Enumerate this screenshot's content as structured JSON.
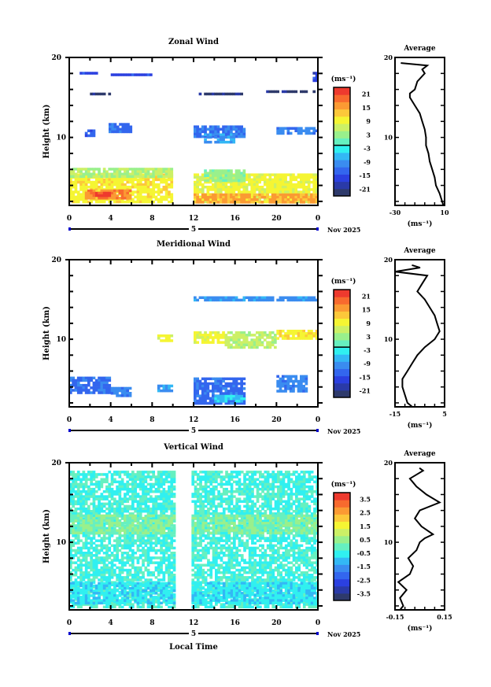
{
  "chart_data": [
    {
      "type": "heatmap",
      "title": "Zonal Wind",
      "ylabel": "Height (km)",
      "xlabel": "",
      "x_ticks": [
        "0",
        "4",
        "8",
        "12",
        "16",
        "20",
        "0"
      ],
      "xlim": [
        0,
        24
      ],
      "y_ticks": [
        "20",
        "10"
      ],
      "ylim": [
        1.5,
        20
      ],
      "date_label": "5",
      "month_label": "Nov 2025",
      "colorbar": {
        "unit": "(ms⁻¹)",
        "labels": [
          "21",
          "15",
          "9",
          "3",
          "-3",
          "-9",
          "-15",
          "-21"
        ],
        "range": [
          -24,
          24
        ]
      },
      "patches": [
        {
          "x0": 0,
          "x1": 10,
          "y0": 1.8,
          "y1": 5.5,
          "v": 10
        },
        {
          "x0": 1.5,
          "x1": 6,
          "y0": 2.3,
          "y1": 3.5,
          "v": 17
        },
        {
          "x0": 2.5,
          "x1": 3.8,
          "y0": 2.6,
          "y1": 3.2,
          "v": 22
        },
        {
          "x0": 0,
          "x1": 10,
          "y0": 5.2,
          "y1": 6.2,
          "v": 5
        },
        {
          "x0": 12,
          "x1": 24,
          "y0": 1.8,
          "y1": 5.5,
          "v": 9
        },
        {
          "x0": 12,
          "x1": 24,
          "y0": 2.0,
          "y1": 3.0,
          "v": 15
        },
        {
          "x0": 13,
          "x1": 17,
          "y0": 4.5,
          "y1": 6.0,
          "v": 3
        },
        {
          "x0": 12,
          "x1": 17,
          "y0": 10.0,
          "y1": 11.5,
          "v": -12
        },
        {
          "x0": 13,
          "x1": 16,
          "y0": 9.5,
          "y1": 10.5,
          "v": -8
        },
        {
          "x0": 1.5,
          "x1": 2.5,
          "y0": 10.3,
          "y1": 11.0,
          "v": -13
        },
        {
          "x0": 3.8,
          "x1": 6,
          "y0": 10.8,
          "y1": 11.8,
          "v": -12
        },
        {
          "x0": 20,
          "x1": 24,
          "y0": 10.5,
          "y1": 11.3,
          "v": -10
        },
        {
          "x0": 1,
          "x1": 3,
          "y0": 17.9,
          "y1": 18.2,
          "v": -16
        },
        {
          "x0": 4,
          "x1": 8,
          "y0": 17.8,
          "y1": 18.0,
          "v": -16
        },
        {
          "x0": 2,
          "x1": 4,
          "y0": 15.3,
          "y1": 15.6,
          "v": -22
        },
        {
          "x0": 12.5,
          "x1": 17,
          "y0": 15.3,
          "y1": 15.6,
          "v": -22
        },
        {
          "x0": 19,
          "x1": 24,
          "y0": 15.6,
          "y1": 15.9,
          "v": -22
        },
        {
          "x0": 23.5,
          "x1": 24,
          "y0": 17.0,
          "y1": 18.2,
          "v": -16
        }
      ],
      "profile": {
        "title": "Average",
        "xlabel": "(ms⁻¹)",
        "x_ticks": [
          "-30",
          "10"
        ],
        "xlim": [
          -30,
          10
        ],
        "y_ticks": [
          "20",
          "10"
        ],
        "height": [
          1.5,
          2,
          3,
          4,
          5,
          6,
          7,
          8,
          9,
          10,
          11,
          12,
          13,
          14,
          15,
          15.5,
          16,
          17,
          18,
          18.5,
          19,
          19.3
        ],
        "values": [
          9,
          8,
          6,
          3,
          2,
          0,
          -2,
          -3,
          -5,
          -5,
          -6,
          -8,
          -10,
          -14,
          -18,
          -18,
          -14,
          -12,
          -6,
          -8,
          -4,
          -25
        ]
      }
    },
    {
      "type": "heatmap",
      "title": "Meridional Wind",
      "ylabel": "Height (km)",
      "xlabel": "",
      "x_ticks": [
        "0",
        "4",
        "8",
        "12",
        "16",
        "20",
        "0"
      ],
      "xlim": [
        0,
        24
      ],
      "y_ticks": [
        "20",
        "10"
      ],
      "ylim": [
        1.5,
        20
      ],
      "date_label": "5",
      "month_label": "Nov 2025",
      "colorbar": {
        "unit": "(ms⁻¹)",
        "labels": [
          "21",
          "15",
          "9",
          "3",
          "-3",
          "-9",
          "-15",
          "-21"
        ],
        "range": [
          -24,
          24
        ]
      },
      "patches": [
        {
          "x0": 0,
          "x1": 4,
          "y0": 3.3,
          "y1": 5.3,
          "v": -12
        },
        {
          "x0": 4,
          "x1": 6,
          "y0": 3.0,
          "y1": 4.0,
          "v": -10
        },
        {
          "x0": 8.5,
          "x1": 10,
          "y0": 3.5,
          "y1": 4.3,
          "v": -9
        },
        {
          "x0": 12,
          "x1": 17,
          "y0": 2.0,
          "y1": 5.2,
          "v": -12
        },
        {
          "x0": 14,
          "x1": 17,
          "y0": 2.2,
          "y1": 3.0,
          "v": -5
        },
        {
          "x0": 20,
          "x1": 23,
          "y0": 3.5,
          "y1": 5.5,
          "v": -10
        },
        {
          "x0": 12,
          "x1": 15,
          "y0": 9.5,
          "y1": 11.0,
          "v": 9
        },
        {
          "x0": 15,
          "x1": 20,
          "y0": 9.0,
          "y1": 11.0,
          "v": 6
        },
        {
          "x0": 20,
          "x1": 24,
          "y0": 10.0,
          "y1": 11.2,
          "v": 10
        },
        {
          "x0": 8.5,
          "x1": 10,
          "y0": 9.8,
          "y1": 10.6,
          "v": 9
        },
        {
          "x0": 12,
          "x1": 24,
          "y0": 15.0,
          "y1": 15.4,
          "v": -9
        }
      ],
      "profile": {
        "title": "Average",
        "xlabel": "(ms⁻¹)",
        "x_ticks": [
          "-15",
          "5"
        ],
        "xlim": [
          -15,
          5
        ],
        "y_ticks": [
          "20",
          "10"
        ],
        "height": [
          1.5,
          2,
          3,
          4,
          5,
          6,
          7,
          8,
          9,
          10,
          11,
          12,
          13,
          14,
          15,
          16,
          17,
          18,
          18.5,
          19,
          19.3
        ],
        "values": [
          -8,
          -10,
          -11,
          -12,
          -12,
          -10,
          -8,
          -6,
          -3,
          1,
          3,
          2,
          1,
          -1,
          -3,
          -6,
          -4,
          -2,
          -16,
          -5,
          -8
        ]
      }
    },
    {
      "type": "heatmap",
      "title": "Vertical Wind",
      "ylabel": "Height (km)",
      "xlabel": "Local Time",
      "x_ticks": [
        "0",
        "4",
        "8",
        "12",
        "16",
        "20",
        "0"
      ],
      "xlim": [
        0,
        24
      ],
      "y_ticks": [
        "20",
        "10"
      ],
      "ylim": [
        1.5,
        20
      ],
      "date_label": "5",
      "month_label": "Nov 2025",
      "colorbar": {
        "unit": "(ms⁻¹)",
        "labels": [
          "3.5",
          "2.5",
          "1.5",
          "0.5",
          "-0.5",
          "-1.5",
          "-2.5",
          "-3.5"
        ],
        "range": [
          -4,
          4
        ]
      },
      "patches": [
        {
          "x0": 0,
          "x1": 10.2,
          "y0": 1.8,
          "y1": 19.0,
          "v": -0.3
        },
        {
          "x0": 11.8,
          "x1": 24,
          "y0": 1.8,
          "y1": 19.0,
          "v": -0.3
        },
        {
          "x0": 0,
          "x1": 10.2,
          "y0": 11.3,
          "y1": 13.5,
          "v": 0.3
        },
        {
          "x0": 11.8,
          "x1": 24,
          "y0": 11.3,
          "y1": 13.5,
          "v": 0.3
        },
        {
          "x0": 0,
          "x1": 10.2,
          "y0": 2.5,
          "y1": 5.0,
          "v": -0.7
        },
        {
          "x0": 11.8,
          "x1": 24,
          "y0": 2.5,
          "y1": 5.0,
          "v": -0.7
        }
      ],
      "profile": {
        "title": "Average",
        "xlabel": "(ms⁻¹)",
        "x_ticks": [
          "-0.15",
          "0.15"
        ],
        "xlim": [
          -0.15,
          0.15
        ],
        "y_ticks": [
          "20",
          "10"
        ],
        "height": [
          1.5,
          2,
          3,
          4,
          5,
          6,
          7,
          8,
          9,
          10,
          10.5,
          11,
          12,
          13,
          14,
          15,
          16,
          17,
          18,
          19,
          19.3
        ],
        "values": [
          -0.12,
          -0.1,
          -0.12,
          -0.08,
          -0.13,
          -0.06,
          -0.04,
          -0.07,
          -0.02,
          0.0,
          0.03,
          0.08,
          0.01,
          -0.03,
          0.0,
          0.12,
          0.04,
          -0.02,
          -0.06,
          0.02,
          0.0
        ]
      }
    }
  ]
}
